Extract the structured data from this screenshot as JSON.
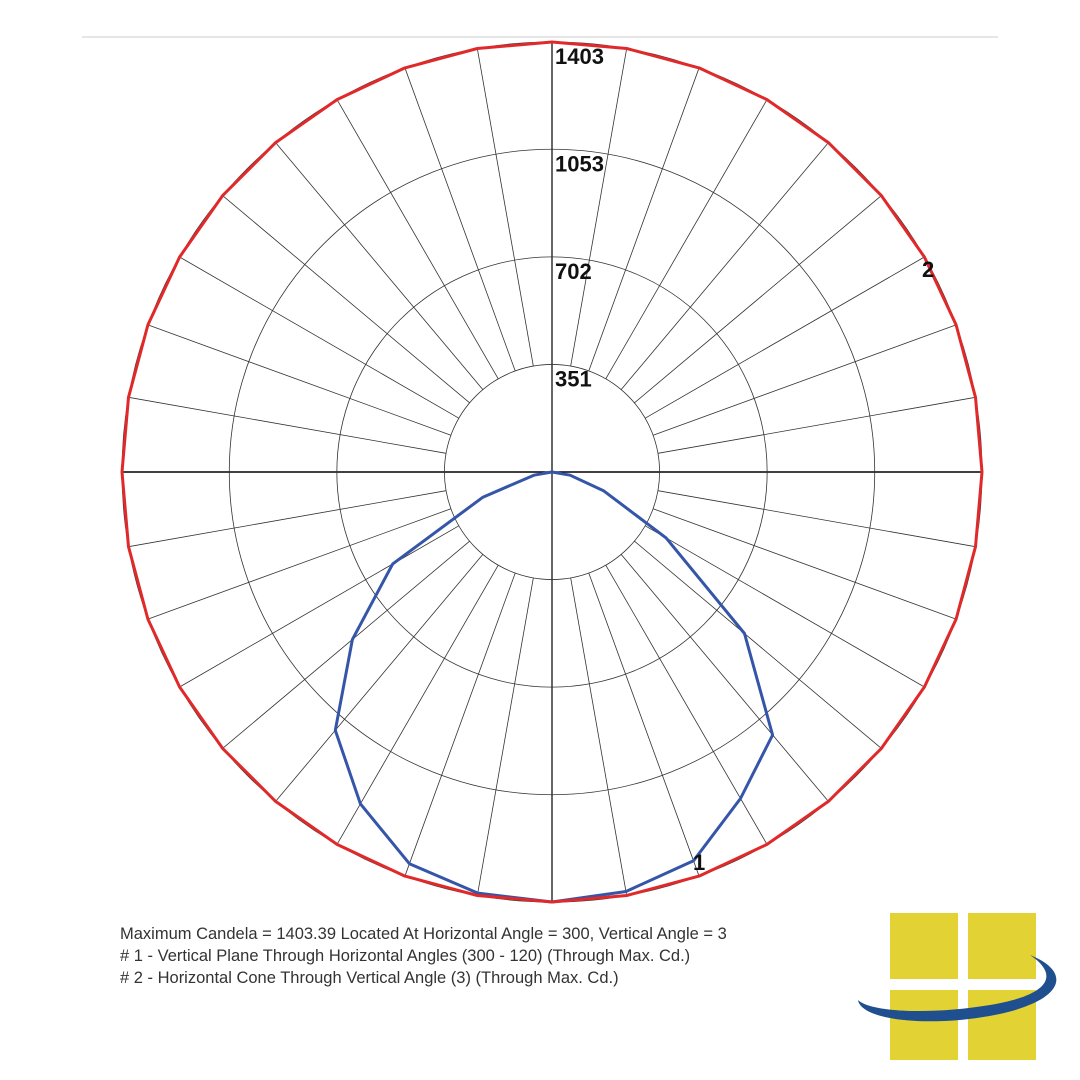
{
  "chart_data": {
    "type": "polar",
    "notes": [
      "Maximum Candela = 1403.39   Located At Horizontal Angle = 300, Vertical Angle = 3",
      "# 1 - Vertical Plane Through Horizontal Angles (300 - 120) (Through Max. Cd.)",
      "# 2 - Horizontal Cone Through Vertical Angle (3) (Through Max. Cd.)"
    ],
    "rlim": [
      0,
      1403
    ],
    "rticks": [
      351,
      702,
      1053,
      1403
    ],
    "series": [
      {
        "name": "1",
        "color": "#3555a8",
        "x": [
          -90,
          -80,
          -70,
          -60,
          -50,
          -40,
          -30,
          -20,
          -10,
          0,
          10,
          20,
          30,
          40,
          50,
          60,
          70,
          80,
          90
        ],
        "values": [
          0,
          60,
          240,
          600,
          850,
          1100,
          1250,
          1360,
          1395,
          1403,
          1390,
          1350,
          1230,
          1120,
          820,
          430,
          180,
          60,
          0
        ]
      },
      {
        "name": "2",
        "color": "#e02a2a",
        "x": [
          0,
          10,
          20,
          30,
          40,
          50,
          60,
          70,
          80,
          90,
          100,
          110,
          120,
          130,
          140,
          150,
          160,
          170,
          180,
          190,
          200,
          210,
          220,
          230,
          240,
          250,
          260,
          270,
          280,
          290,
          300,
          310,
          320,
          330,
          340,
          350
        ],
        "values": [
          1403,
          1403,
          1403,
          1403,
          1403,
          1403,
          1403,
          1403,
          1403,
          1403,
          1403,
          1403,
          1403,
          1403,
          1403,
          1403,
          1403,
          1403,
          1403,
          1403,
          1403,
          1403,
          1403,
          1403,
          1403,
          1403,
          1403,
          1403,
          1403,
          1403,
          1403,
          1403,
          1403,
          1403,
          1403,
          1403
        ]
      }
    ]
  }
}
